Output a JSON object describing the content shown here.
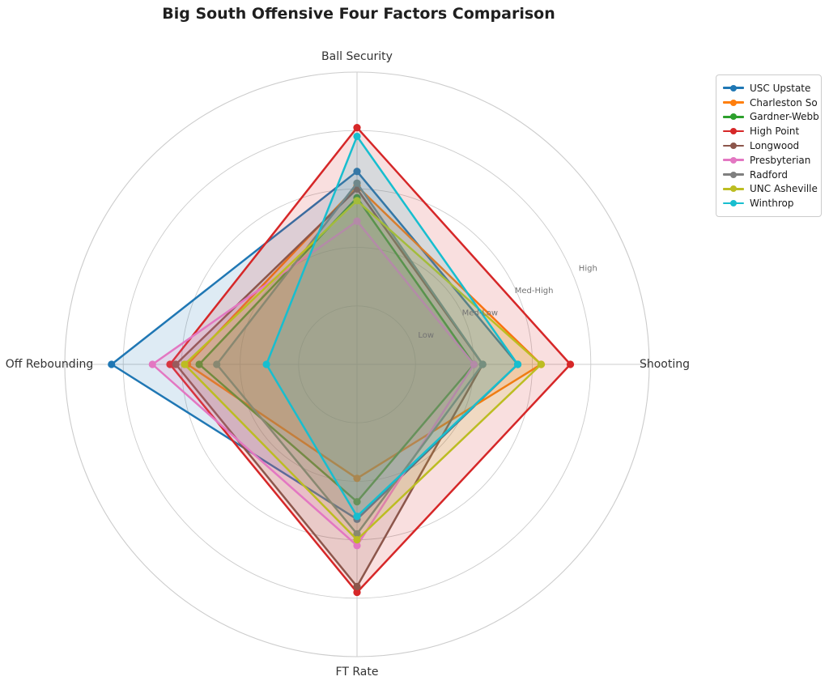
{
  "title": "Big South Offensive Four Factors Comparison",
  "chart_data": {
    "type": "radar",
    "categories": [
      "Ball Security",
      "Shooting",
      "FT Rate",
      "Off Rebounding"
    ],
    "series": [
      {
        "name": "USC Upstate",
        "color": "#1f77b4",
        "values": [
          0.66,
          0.55,
          0.53,
          0.84
        ]
      },
      {
        "name": "Charleston So",
        "color": "#ff7f0e",
        "values": [
          0.61,
          0.63,
          0.39,
          0.58
        ]
      },
      {
        "name": "Gardner-Webb",
        "color": "#2ca02c",
        "values": [
          0.57,
          0.4,
          0.47,
          0.54
        ]
      },
      {
        "name": "High Point",
        "color": "#d62728",
        "values": [
          0.81,
          0.73,
          0.78,
          0.64
        ]
      },
      {
        "name": "Longwood",
        "color": "#8c564b",
        "values": [
          0.6,
          0.43,
          0.76,
          0.62
        ]
      },
      {
        "name": "Presbyterian",
        "color": "#e377c2",
        "values": [
          0.49,
          0.4,
          0.62,
          0.7
        ]
      },
      {
        "name": "Radford",
        "color": "#7f7f7f",
        "values": [
          0.62,
          0.43,
          0.58,
          0.48
        ]
      },
      {
        "name": "UNC Asheville",
        "color": "#bcbd22",
        "values": [
          0.56,
          0.63,
          0.6,
          0.59
        ]
      },
      {
        "name": "Winthrop",
        "color": "#17becf",
        "values": [
          0.78,
          0.55,
          0.52,
          0.31
        ]
      }
    ],
    "r_ticks": [
      {
        "label": "Low",
        "value": 0.2
      },
      {
        "label": "Med-Low",
        "value": 0.4
      },
      {
        "label": "Med-High",
        "value": 0.6
      },
      {
        "label": "High",
        "value": 0.8
      }
    ],
    "r_range": [
      0,
      1
    ],
    "tick_angle_deg": 22.5,
    "grid": true,
    "grid_color": "#cccccc",
    "tick_label_color": "#737373",
    "axis_label_color": "#333333",
    "legend_position": "upper right"
  }
}
